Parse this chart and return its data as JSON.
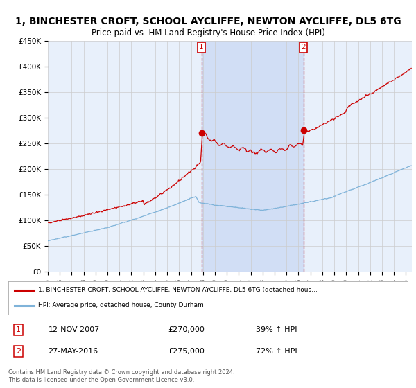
{
  "title": "1, BINCHESTER CROFT, SCHOOL AYCLIFFE, NEWTON AYCLIFFE, DL5 6TG",
  "subtitle": "Price paid vs. HM Land Registry's House Price Index (HPI)",
  "ylabel_ticks": [
    "£0",
    "£50K",
    "£100K",
    "£150K",
    "£200K",
    "£250K",
    "£300K",
    "£350K",
    "£400K",
    "£450K"
  ],
  "ytick_values": [
    0,
    50000,
    100000,
    150000,
    200000,
    250000,
    300000,
    350000,
    400000,
    450000
  ],
  "ylim": [
    0,
    450000
  ],
  "xlim_start": 1995.0,
  "xlim_end": 2025.5,
  "sale1": {
    "year": 2007.87,
    "price": 270000,
    "label": "1",
    "date": "12-NOV-2007",
    "hpi_pct": "39%"
  },
  "sale2": {
    "year": 2016.41,
    "price": 275000,
    "label": "2",
    "date": "27-MAY-2016",
    "hpi_pct": "72%"
  },
  "legend_line1": "1, BINCHESTER CROFT, SCHOOL AYCLIFFE, NEWTON AYCLIFFE, DL5 6TG (detached hous…",
  "legend_line2": "HPI: Average price, detached house, County Durham",
  "footer": "Contains HM Land Registry data © Crown copyright and database right 2024.\nThis data is licensed under the Open Government Licence v3.0.",
  "sale_color": "#cc0000",
  "hpi_color": "#7fb3d9",
  "background_color": "#e8f0fb",
  "shade_color": "#cfddf5",
  "grid_color": "#cccccc",
  "vline_color": "#cc0000",
  "title_fontsize": 10,
  "subtitle_fontsize": 8.5,
  "tick_fontsize": 7.5
}
